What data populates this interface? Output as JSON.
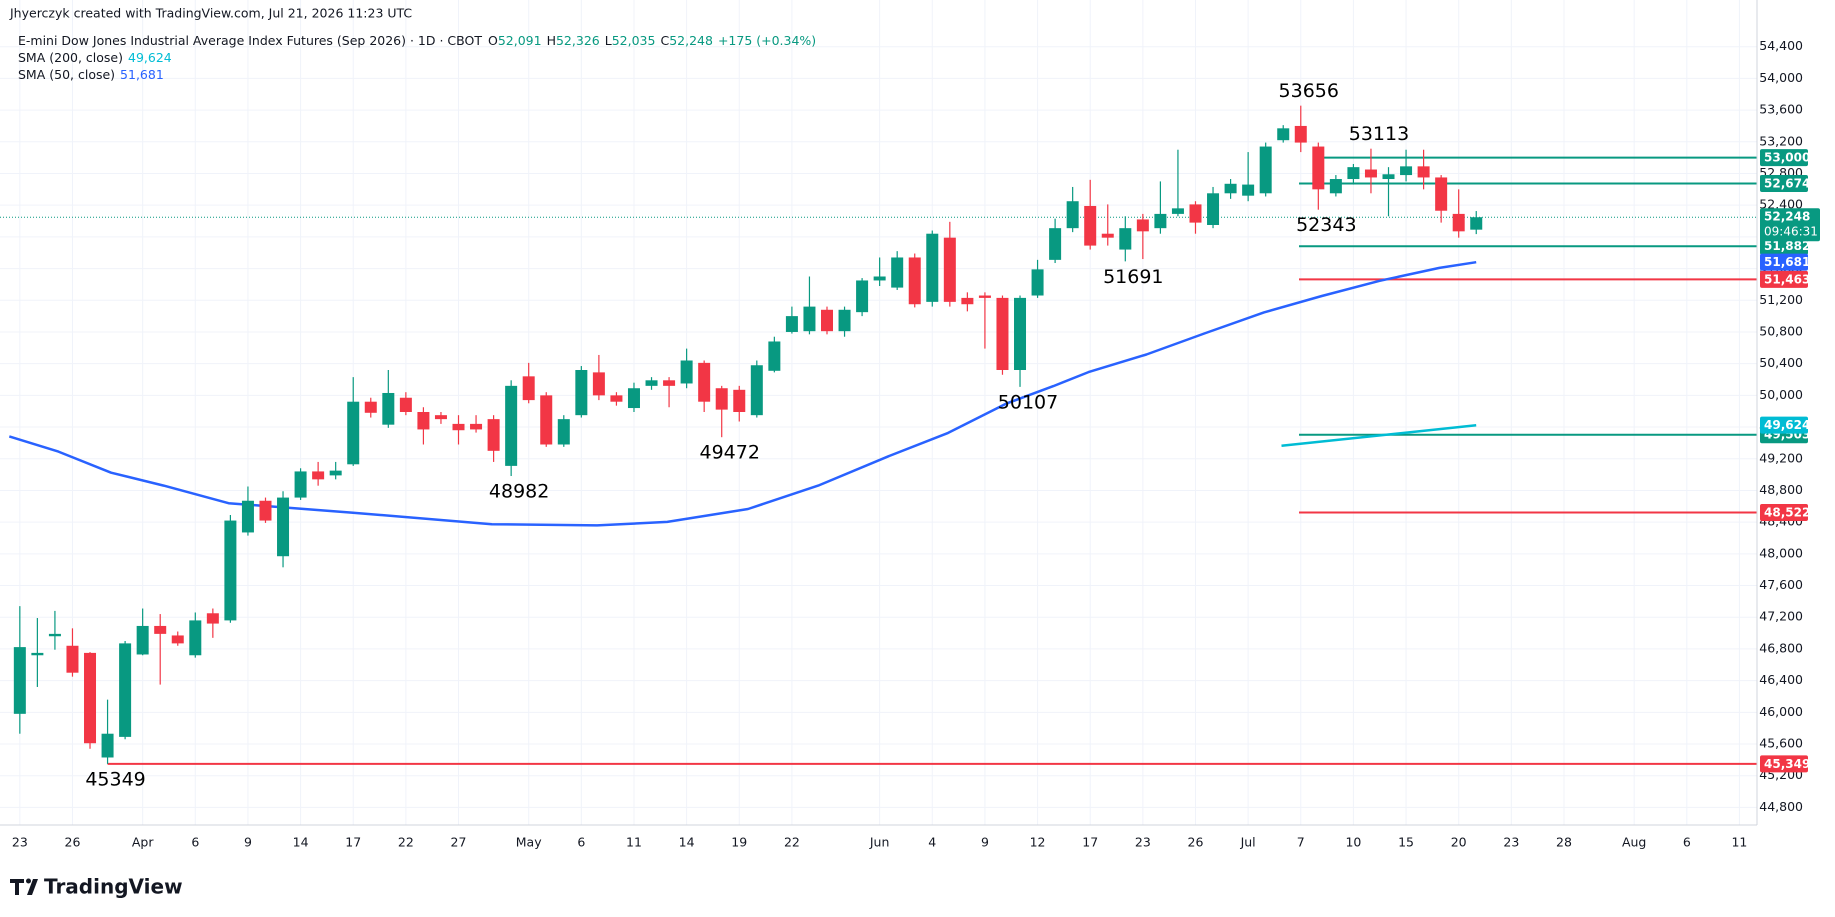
{
  "chart_data": {
    "type": "candlestick",
    "credit": "Jhyerczyk created with TradingView.com, Jul 21, 2026 11:23 UTC",
    "title": "E-mini Dow Jones Industrial Average Index Futures (Sep 2026) · 1D · CBOT",
    "ohlc": [
      {
        "key": "O",
        "value": "52,091"
      },
      {
        "key": "H",
        "value": "52,326"
      },
      {
        "key": "L",
        "value": "52,035"
      },
      {
        "key": "C",
        "value": "52,248"
      }
    ],
    "change": "+175 (+0.34%)",
    "brand": "TradingView",
    "up_color": "#089981",
    "down_color": "#f23645",
    "grid": true,
    "xlim": [
      -1.13,
      99
    ],
    "ylim": [
      44578,
      54636
    ],
    "yticks": [
      {
        "value": 44800,
        "label": "44,800"
      },
      {
        "value": 45200,
        "label": "45,200"
      },
      {
        "value": 45600,
        "label": "45,600"
      },
      {
        "value": 46000,
        "label": "46,000"
      },
      {
        "value": 46400,
        "label": "46,400"
      },
      {
        "value": 46800,
        "label": "46,800"
      },
      {
        "value": 47200,
        "label": "47,200"
      },
      {
        "value": 47600,
        "label": "47,600"
      },
      {
        "value": 48000,
        "label": "48,000"
      },
      {
        "value": 48400,
        "label": "48,400"
      },
      {
        "value": 48800,
        "label": "48,800"
      },
      {
        "value": 49200,
        "label": "49,200"
      },
      {
        "value": 49600,
        "label": "49,600"
      },
      {
        "value": 50000,
        "label": "50,000"
      },
      {
        "value": 50400,
        "label": "50,400"
      },
      {
        "value": 50800,
        "label": "50,800"
      },
      {
        "value": 51200,
        "label": "51,200"
      },
      {
        "value": 51600,
        "label": "51,600"
      },
      {
        "value": 52000,
        "label": "52,000"
      },
      {
        "value": 52400,
        "label": "52,400"
      },
      {
        "value": 52800,
        "label": "52,800"
      },
      {
        "value": 53200,
        "label": "53,200"
      },
      {
        "value": 53600,
        "label": "53,600"
      },
      {
        "value": 54000,
        "label": "54,000"
      },
      {
        "value": 54400,
        "label": "54,400"
      }
    ],
    "xticks": [
      {
        "value": 0,
        "label": "23"
      },
      {
        "value": 3,
        "label": "26"
      },
      {
        "value": 7,
        "label": "Apr"
      },
      {
        "value": 10,
        "label": "6"
      },
      {
        "value": 13,
        "label": "9"
      },
      {
        "value": 16,
        "label": "14"
      },
      {
        "value": 19,
        "label": "17"
      },
      {
        "value": 22,
        "label": "22"
      },
      {
        "value": 25,
        "label": "27"
      },
      {
        "value": 29,
        "label": "May"
      },
      {
        "value": 32,
        "label": "6"
      },
      {
        "value": 35,
        "label": "11"
      },
      {
        "value": 38,
        "label": "14"
      },
      {
        "value": 41,
        "label": "19"
      },
      {
        "value": 44,
        "label": "22"
      },
      {
        "value": 49,
        "label": "Jun"
      },
      {
        "value": 52,
        "label": "4"
      },
      {
        "value": 55,
        "label": "9"
      },
      {
        "value": 58,
        "label": "12"
      },
      {
        "value": 61,
        "label": "17"
      },
      {
        "value": 64,
        "label": "23"
      },
      {
        "value": 67,
        "label": "26"
      },
      {
        "value": 70,
        "label": "Jul"
      },
      {
        "value": 73,
        "label": "7"
      },
      {
        "value": 76,
        "label": "10"
      },
      {
        "value": 79,
        "label": "15"
      },
      {
        "value": 82,
        "label": "20"
      },
      {
        "value": 85,
        "label": "23"
      },
      {
        "value": 88,
        "label": "28"
      },
      {
        "value": 92,
        "label": "Aug"
      },
      {
        "value": 95,
        "label": "6"
      },
      {
        "value": 98,
        "label": "11"
      }
    ],
    "open": [
      45981,
      46720,
      46960,
      46840,
      46750,
      45430,
      45690,
      46730,
      47090,
      46970,
      46720,
      47250,
      47160,
      48270,
      48670,
      47970,
      48710,
      49040,
      48990,
      49130,
      49920,
      49630,
      49970,
      49790,
      49750,
      49640,
      49640,
      49700,
      49110,
      50240,
      50000,
      49380,
      49750,
      50290,
      50000,
      49840,
      50120,
      50190,
      50150,
      50410,
      50090,
      50070,
      49750,
      50310,
      50800,
      50810,
      51080,
      50810,
      51050,
      51450,
      51360,
      51740,
      51180,
      51990,
      51230,
      51260,
      51230,
      50320,
      51260,
      51710,
      52110,
      52390,
      52040,
      51840,
      52220,
      52110,
      52290,
      52410,
      52150,
      52550,
      52520,
      52550,
      53220,
      53400,
      53140,
      52550,
      52730,
      52850,
      52730,
      52780,
      52890,
      52750,
      52290,
      52091
    ],
    "high": [
      47340,
      47190,
      47280,
      47060,
      46760,
      46160,
      46900,
      47310,
      47240,
      47020,
      47260,
      47310,
      48490,
      48850,
      48710,
      48790,
      49080,
      49160,
      49160,
      50230,
      49970,
      50320,
      50040,
      49850,
      49790,
      49750,
      49750,
      49750,
      50190,
      50410,
      50040,
      49750,
      50370,
      50510,
      50040,
      50160,
      50230,
      50230,
      50590,
      50440,
      50120,
      50120,
      50440,
      50740,
      51120,
      51500,
      51120,
      51120,
      51480,
      51740,
      51820,
      51790,
      52080,
      52190,
      51300,
      51300,
      51260,
      51260,
      51710,
      52230,
      52630,
      52720,
      52410,
      52260,
      52290,
      52700,
      53100,
      52450,
      52630,
      52730,
      53070,
      53190,
      53410,
      53656,
      53190,
      52780,
      52920,
      53113,
      52880,
      53100,
      53100,
      52780,
      52600,
      52326
    ],
    "low": [
      45730,
      46320,
      46790,
      46450,
      45540,
      45349,
      45660,
      46720,
      46350,
      46840,
      46690,
      46940,
      47130,
      48230,
      48390,
      47830,
      48680,
      48860,
      48940,
      49110,
      49720,
      49590,
      49750,
      49380,
      49640,
      49380,
      49530,
      49160,
      48982,
      49900,
      49350,
      49350,
      49720,
      49940,
      49870,
      49790,
      50070,
      49850,
      50090,
      49790,
      49472,
      49670,
      49720,
      50290,
      50780,
      50770,
      50770,
      50740,
      51000,
      51380,
      51330,
      51110,
      51120,
      51120,
      51060,
      50590,
      50260,
      50107,
      51230,
      51670,
      52060,
      51840,
      51890,
      51691,
      51720,
      52040,
      52260,
      52040,
      52110,
      52480,
      52450,
      52510,
      53190,
      53070,
      52343,
      52510,
      52660,
      52550,
      52260,
      52700,
      52600,
      52180,
      51990,
      52035
    ],
    "close": [
      46823,
      46750,
      46990,
      46500,
      45610,
      45730,
      46870,
      47090,
      46990,
      46870,
      47160,
      47120,
      48420,
      48670,
      48420,
      48710,
      49040,
      48940,
      49050,
      49920,
      49780,
      50030,
      49790,
      49570,
      49700,
      49560,
      49570,
      49300,
      50120,
      49940,
      49380,
      49700,
      50320,
      50000,
      49920,
      50090,
      50190,
      50120,
      50440,
      49920,
      49820,
      49790,
      50380,
      50680,
      51000,
      51120,
      50810,
      51080,
      51450,
      51500,
      51740,
      51150,
      52040,
      51180,
      51150,
      51230,
      50320,
      51230,
      51590,
      52110,
      52450,
      51890,
      51990,
      52110,
      52070,
      52290,
      52360,
      52180,
      52550,
      52670,
      52660,
      53140,
      53370,
      53190,
      52600,
      52730,
      52880,
      52750,
      52790,
      52890,
      52750,
      52330,
      52070,
      52248
    ],
    "last_price": {
      "value": 52248,
      "label": "52,248",
      "countdown": "09:46:31"
    },
    "indicators": [
      {
        "name": "SMA (200, close)",
        "color": "#00bcd4",
        "value": 49624,
        "value_label": "49,624",
        "x": [
          71.9,
          83
        ],
        "values": [
          49364,
          49624
        ]
      },
      {
        "name": "SMA (50, close)",
        "color": "#2962ff",
        "value": 51681,
        "value_label": "51,681",
        "x": [
          -0.6,
          2.2,
          5.2,
          8.2,
          11.9,
          18.9,
          26.9,
          32.9,
          36.9,
          41.5,
          45.5,
          49.5,
          52.9,
          56.2,
          58.9,
          60.9,
          64.2,
          67.5,
          70.9,
          74.2,
          77.5,
          80.9,
          83
        ],
        "values": [
          49482,
          49290,
          49024,
          48861,
          48639,
          48521,
          48374,
          48359,
          48403,
          48566,
          48861,
          49231,
          49526,
          49895,
          50117,
          50294,
          50516,
          50781,
          51047,
          51254,
          51446,
          51609,
          51681
        ]
      }
    ],
    "levels": [
      {
        "value": 53000,
        "label": "53,000",
        "color": "#089981",
        "start": 74.2
      },
      {
        "value": 52674,
        "label": "52,674",
        "color": "#089981",
        "start": 72.9
      },
      {
        "value": 51882,
        "label": "51,882",
        "color": "#089981",
        "start": 72.9
      },
      {
        "value": 51463,
        "label": "51,463",
        "color": "#f23645",
        "start": 72.9
      },
      {
        "value": 49503,
        "label": "49,503",
        "color": "#089981",
        "start": 72.9
      },
      {
        "value": 48522,
        "label": "48,522",
        "color": "#f23645",
        "start": 72.9
      },
      {
        "value": 45349,
        "label": "45,349",
        "color": "#f23645",
        "start": 5
      }
    ],
    "annotations": [
      {
        "text": 53656,
        "candle": 73,
        "side": "above"
      },
      {
        "text": 53113,
        "candle": 77,
        "side": "above"
      },
      {
        "text": 52343,
        "candle": 74,
        "side": "below"
      },
      {
        "text": 51691,
        "candle": 63,
        "side": "below"
      },
      {
        "text": 50107,
        "candle": 57,
        "side": "below"
      },
      {
        "text": 49472,
        "candle": 40,
        "side": "below"
      },
      {
        "text": 48982,
        "candle": 28,
        "side": "below"
      },
      {
        "text": 45349,
        "candle": 5,
        "side": "below"
      }
    ]
  }
}
